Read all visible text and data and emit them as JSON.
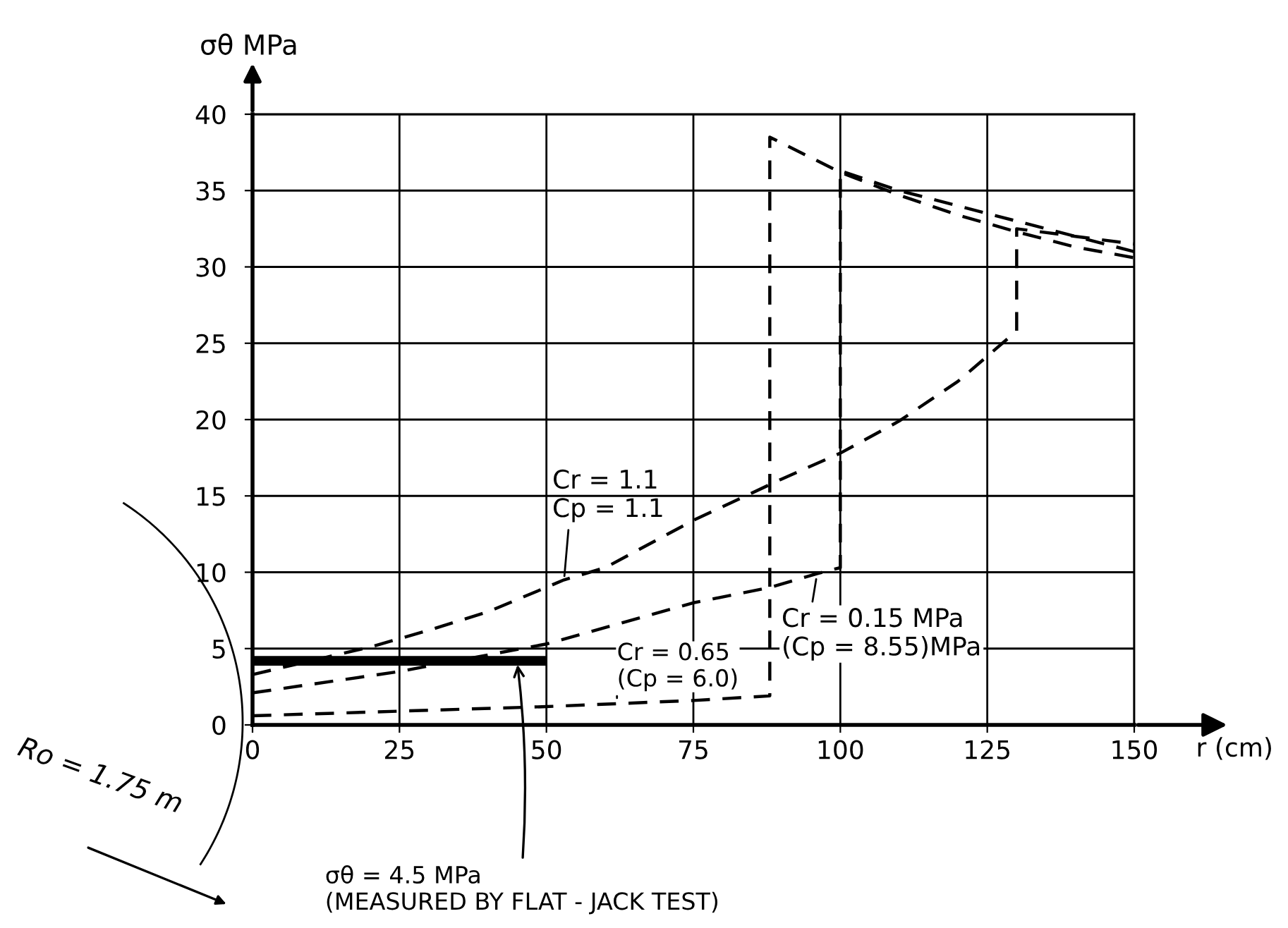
{
  "chart_data": {
    "type": "line",
    "xlabel": "r (cm)",
    "ylabel": "σθ MPa",
    "xlim": [
      0,
      150
    ],
    "ylim": [
      0,
      40
    ],
    "xticks": [
      0,
      25,
      50,
      75,
      100,
      125,
      150
    ],
    "yticks": [
      0,
      5,
      10,
      15,
      20,
      25,
      30,
      35,
      40
    ],
    "grid": true,
    "legend": false,
    "series": [
      {
        "color": "#000000",
        "line_style": "dashed",
        "x": [
          0,
          10,
          20,
          30,
          40,
          53,
          60,
          75,
          90,
          100,
          110,
          120,
          130,
          130,
          140,
          150
        ],
        "values": [
          3.3,
          4.2,
          5.1,
          6.2,
          7.4,
          9.5,
          10.3,
          13.4,
          16.1,
          17.8,
          19.9,
          22.5,
          25.8,
          32.5,
          32.0,
          31.5
        ]
      },
      {
        "color": "#000000",
        "line_style": "dashed",
        "x": [
          0,
          25,
          50,
          75,
          88,
          96,
          100,
          100,
          110,
          120,
          130,
          140,
          150
        ],
        "values": [
          2.1,
          3.5,
          5.3,
          8.0,
          9.0,
          9.9,
          10.3,
          36.3,
          35.0,
          34.0,
          33.0,
          32.0,
          31.0
        ]
      },
      {
        "color": "#000000",
        "line_style": "dashed",
        "x": [
          0,
          25,
          50,
          75,
          88,
          88,
          100,
          110,
          120,
          130,
          140,
          150
        ],
        "values": [
          0.6,
          0.9,
          1.2,
          1.6,
          1.9,
          38.5,
          36.2,
          34.7,
          33.4,
          32.3,
          31.3,
          30.6
        ]
      },
      {
        "color": "#000000",
        "line_style": "solid",
        "x": [
          0,
          50
        ],
        "values": [
          4.2,
          4.2
        ]
      }
    ],
    "annotations": [
      {
        "text": "Cr = 1.1\nCp = 1.1",
        "x": 53,
        "y": 9.5
      },
      {
        "text": "Cr = 0.65\n(Cp = 6.0)",
        "x": 62,
        "y": 1.5
      },
      {
        "text": "Cr = 0.15 MPa\n(Cp = 8.55)MPa",
        "x": 96,
        "y": 9.8
      },
      {
        "text": "σθ = 4.5 MPa\n(MEASURED BY FLAT - JACK TEST)",
        "x": 45,
        "y": 4.2
      },
      "Ro = 1.75 m"
    ]
  }
}
